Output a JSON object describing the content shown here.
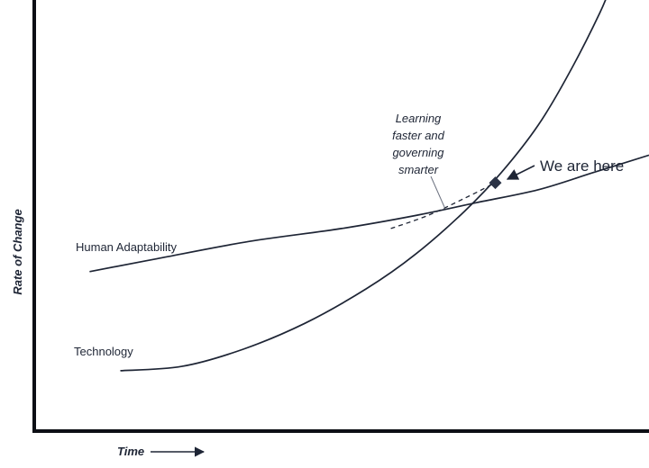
{
  "chart_data": {
    "type": "line",
    "title": "",
    "xlabel": "Time",
    "ylabel": "Rate of Change",
    "grid": false,
    "legend": "none",
    "xlim": [
      0,
      100
    ],
    "ylim": [
      0,
      100
    ],
    "series": [
      {
        "name": "Human Adaptability",
        "color": "#1e2535",
        "points": [
          [
            9,
            37
          ],
          [
            20,
            40
          ],
          [
            35,
            44
          ],
          [
            50,
            47
          ],
          [
            62,
            50
          ],
          [
            72,
            53
          ],
          [
            82,
            56
          ],
          [
            91,
            60
          ],
          [
            100,
            64
          ]
        ]
      },
      {
        "name": "Technology",
        "color": "#1e2535",
        "points": [
          [
            14,
            14
          ],
          [
            24,
            15
          ],
          [
            34,
            19
          ],
          [
            44,
            25
          ],
          [
            54,
            33
          ],
          [
            62,
            41
          ],
          [
            70,
            51
          ],
          [
            76,
            60
          ],
          [
            82,
            71
          ],
          [
            87,
            83
          ],
          [
            92,
            97
          ],
          [
            94,
            104
          ]
        ]
      }
    ],
    "annotations": [
      {
        "id": "learning",
        "text_lines": [
          "Learning",
          "faster and",
          "governing",
          "smarter"
        ],
        "style": "dashed",
        "path": [
          [
            58,
            47
          ],
          [
            64,
            50
          ],
          [
            70,
            54
          ],
          [
            75,
            57.6
          ]
        ]
      },
      {
        "id": "here",
        "text": "We are here",
        "marker": "diamond",
        "point": [
          75,
          57.6
        ]
      }
    ]
  }
}
